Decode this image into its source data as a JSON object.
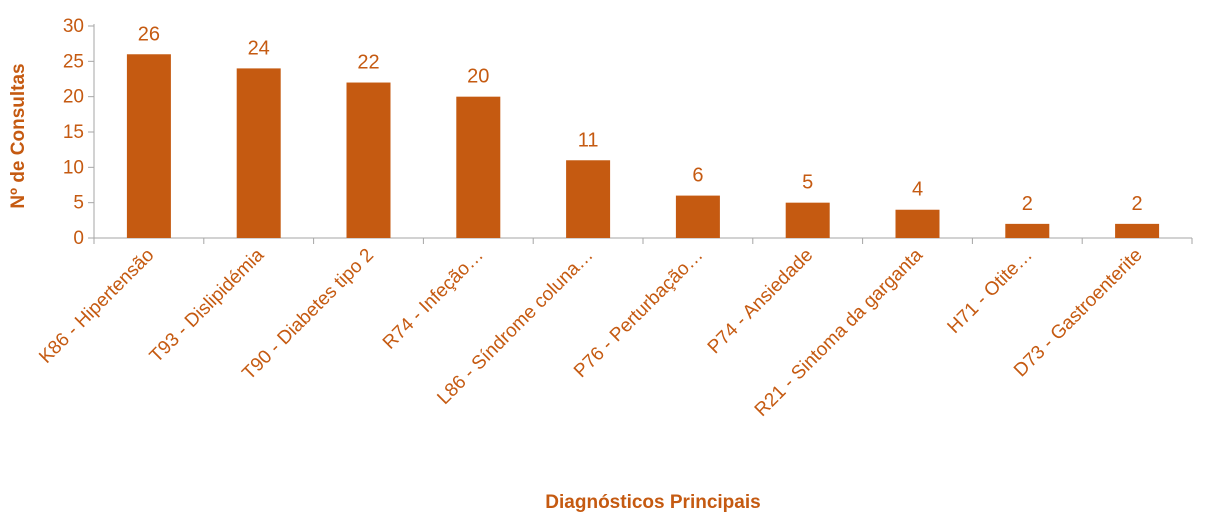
{
  "chart_data": {
    "type": "bar",
    "categories": [
      "K86 - Hipertensão",
      "T93 - Dislipidémia",
      "T90 - Diabetes tipo 2",
      "R74 - Infeção…",
      "L86 - Síndrome coluna…",
      "P76 - Perturbação…",
      "P74 - Ansiedade",
      "R21 - Sintoma da garganta",
      "H71 - Otite…",
      "D73 - Gastroenterite"
    ],
    "values": [
      26,
      24,
      22,
      20,
      11,
      6,
      5,
      4,
      2,
      2
    ],
    "xlabel": "Diagnósticos Principais",
    "ylabel": "Nº de Consultas",
    "ylim": [
      0,
      30
    ],
    "yticks": [
      0,
      5,
      10,
      15,
      20,
      25,
      30
    ],
    "grid": false,
    "legend": "none",
    "colors": {
      "bar": "#C55A11",
      "text": "#C55A11",
      "axis": "#A6A6A6"
    }
  }
}
